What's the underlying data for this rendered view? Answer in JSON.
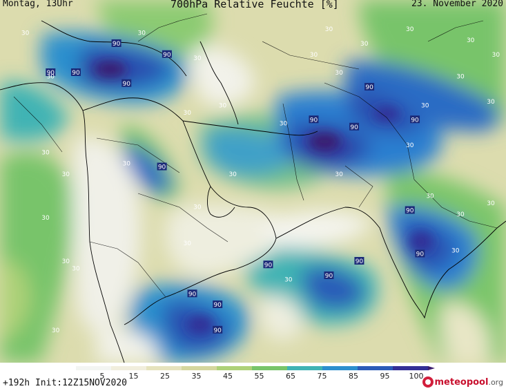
{
  "header": {
    "left": "Montag, 13Uhr",
    "center": "700hPa Relative Feuchte [%]",
    "right": "23. November 2020"
  },
  "footer": {
    "init": "+192h Init:12Z15NOV2020",
    "logo_main": "meteopool",
    "logo_suffix": ".org"
  },
  "legend": {
    "ticks": [
      "5",
      "15",
      "25",
      "35",
      "45",
      "55",
      "65",
      "75",
      "85",
      "95",
      "100"
    ],
    "colors": [
      "#f3f5f2",
      "#f1eedd",
      "#e6e3bd",
      "#d5d79e",
      "#aed178",
      "#78c46a",
      "#3fb3b4",
      "#2c8fce",
      "#2b5bb8",
      "#332f96",
      "#3a1d6e"
    ]
  },
  "contour_labels": [
    {
      "text": "30",
      "lon": 0.05,
      "lat": 0.09
    },
    {
      "text": "30",
      "lon": 0.28,
      "lat": 0.09
    },
    {
      "text": "90",
      "lon": 0.23,
      "lat": 0.12
    },
    {
      "text": "90",
      "lon": 0.33,
      "lat": 0.15
    },
    {
      "text": "30",
      "lon": 0.39,
      "lat": 0.16
    },
    {
      "text": "30",
      "lon": 0.65,
      "lat": 0.08
    },
    {
      "text": "30",
      "lon": 0.81,
      "lat": 0.08
    },
    {
      "text": "30",
      "lon": 0.93,
      "lat": 0.11
    },
    {
      "text": "30",
      "lon": 0.98,
      "lat": 0.15
    },
    {
      "text": "30",
      "lon": 0.72,
      "lat": 0.12
    },
    {
      "text": "30",
      "lon": 0.62,
      "lat": 0.15
    },
    {
      "text": "30",
      "lon": 0.67,
      "lat": 0.2
    },
    {
      "text": "90",
      "lon": 0.1,
      "lat": 0.2
    },
    {
      "text": "90",
      "lon": 0.15,
      "lat": 0.2
    },
    {
      "text": "30",
      "lon": 0.1,
      "lat": 0.21
    },
    {
      "text": "90",
      "lon": 0.25,
      "lat": 0.23
    },
    {
      "text": "90",
      "lon": 0.73,
      "lat": 0.24
    },
    {
      "text": "30",
      "lon": 0.91,
      "lat": 0.21
    },
    {
      "text": "30",
      "lon": 0.97,
      "lat": 0.28
    },
    {
      "text": "30",
      "lon": 0.44,
      "lat": 0.29
    },
    {
      "text": "30",
      "lon": 0.37,
      "lat": 0.31
    },
    {
      "text": "30",
      "lon": 0.84,
      "lat": 0.29
    },
    {
      "text": "90",
      "lon": 0.62,
      "lat": 0.33
    },
    {
      "text": "90",
      "lon": 0.7,
      "lat": 0.35
    },
    {
      "text": "90",
      "lon": 0.82,
      "lat": 0.33
    },
    {
      "text": "30",
      "lon": 0.56,
      "lat": 0.34
    },
    {
      "text": "30",
      "lon": 0.09,
      "lat": 0.42
    },
    {
      "text": "30",
      "lon": 0.25,
      "lat": 0.45
    },
    {
      "text": "90",
      "lon": 0.32,
      "lat": 0.46
    },
    {
      "text": "30",
      "lon": 0.46,
      "lat": 0.48
    },
    {
      "text": "30",
      "lon": 0.67,
      "lat": 0.48
    },
    {
      "text": "30",
      "lon": 0.81,
      "lat": 0.4
    },
    {
      "text": "30",
      "lon": 0.13,
      "lat": 0.48
    },
    {
      "text": "30",
      "lon": 0.85,
      "lat": 0.54
    },
    {
      "text": "30",
      "lon": 0.39,
      "lat": 0.57
    },
    {
      "text": "30",
      "lon": 0.97,
      "lat": 0.56
    },
    {
      "text": "30",
      "lon": 0.09,
      "lat": 0.6
    },
    {
      "text": "90",
      "lon": 0.81,
      "lat": 0.58
    },
    {
      "text": "30",
      "lon": 0.91,
      "lat": 0.59
    },
    {
      "text": "30",
      "lon": 0.37,
      "lat": 0.67
    },
    {
      "text": "30",
      "lon": 0.9,
      "lat": 0.69
    },
    {
      "text": "90",
      "lon": 0.83,
      "lat": 0.7
    },
    {
      "text": "30",
      "lon": 0.13,
      "lat": 0.72
    },
    {
      "text": "90",
      "lon": 0.53,
      "lat": 0.73
    },
    {
      "text": "90",
      "lon": 0.71,
      "lat": 0.72
    },
    {
      "text": "30",
      "lon": 0.15,
      "lat": 0.74
    },
    {
      "text": "90",
      "lon": 0.65,
      "lat": 0.76
    },
    {
      "text": "30",
      "lon": 0.57,
      "lat": 0.77
    },
    {
      "text": "90",
      "lon": 0.38,
      "lat": 0.81
    },
    {
      "text": "90",
      "lon": 0.43,
      "lat": 0.84
    },
    {
      "text": "30",
      "lon": 0.11,
      "lat": 0.91
    },
    {
      "text": "90",
      "lon": 0.43,
      "lat": 0.91
    }
  ]
}
